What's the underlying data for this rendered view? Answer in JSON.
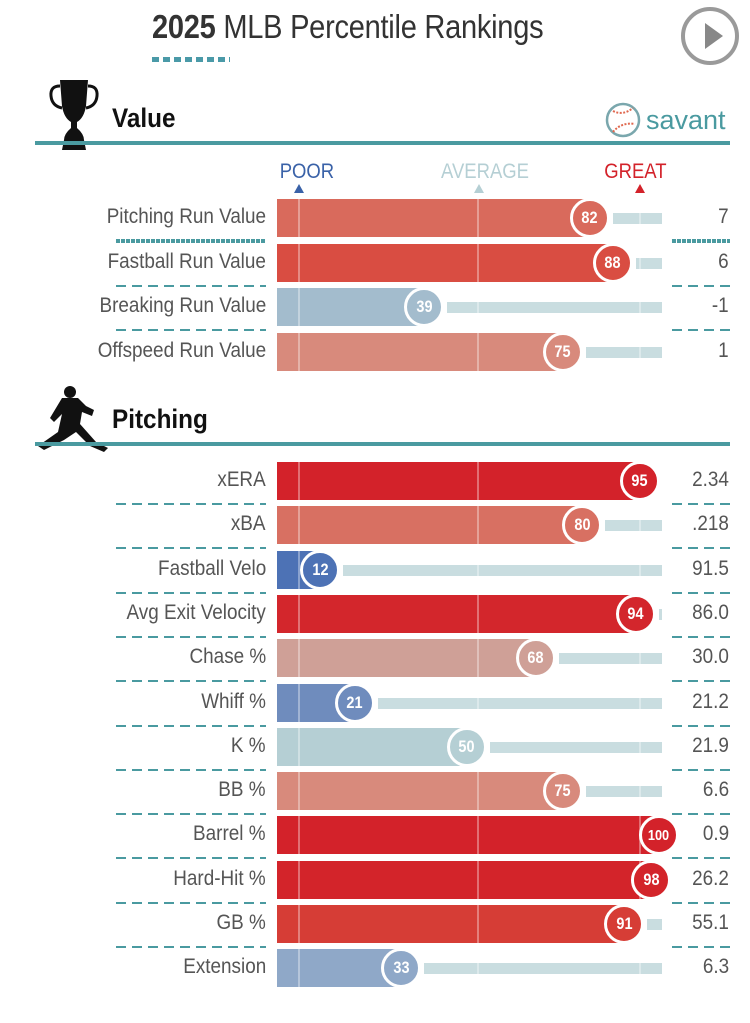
{
  "header": {
    "title_year": "2025",
    "title_rest": " MLB Percentile Rankings",
    "play_button": "play-icon"
  },
  "brand": {
    "label": "savant",
    "icon": "baseball-icon"
  },
  "legend": {
    "poor": "POOR",
    "average": "AVERAGE",
    "great": "GREAT"
  },
  "colors": {
    "accent": "#4a9aa0",
    "poor": "#3a62a8",
    "average": "#b5cfd4",
    "great": "#d3222a",
    "track": "#c9dde0"
  },
  "chart_data": [
    {
      "type": "bar",
      "title": "Value",
      "xlabel": "Percentile",
      "xlim": [
        0,
        100
      ],
      "categories": [
        "Pitching Run Value",
        "Fastball Run Value",
        "Breaking Run Value",
        "Offspeed Run Value"
      ],
      "percentiles": [
        82,
        88,
        39,
        75
      ],
      "stat_values": [
        "7",
        "6",
        "-1",
        "1"
      ],
      "bar_colors": [
        "#d96a5c",
        "#d94d42",
        "#a3bccd",
        "#d88a7c"
      ]
    },
    {
      "type": "bar",
      "title": "Pitching",
      "xlabel": "Percentile",
      "xlim": [
        0,
        100
      ],
      "categories": [
        "xERA",
        "xBA",
        "Fastball Velo",
        "Avg Exit Velocity",
        "Chase %",
        "Whiff %",
        "K %",
        "BB %",
        "Barrel %",
        "Hard-Hit %",
        "GB %",
        "Extension"
      ],
      "percentiles": [
        95,
        80,
        12,
        94,
        68,
        21,
        50,
        75,
        100,
        98,
        91,
        33
      ],
      "stat_values": [
        "2.34",
        ".218",
        "91.5",
        "86.0",
        "30.0",
        "21.2",
        "21.9",
        "6.6",
        "0.9",
        "26.2",
        "55.1",
        "6.3"
      ],
      "bar_colors": [
        "#d3222a",
        "#d87062",
        "#4d72b5",
        "#d3262c",
        "#cfa097",
        "#6f8cbd",
        "#b5cfd4",
        "#d88a7c",
        "#d3222a",
        "#d3242a",
        "#d63d36",
        "#8fa8c8"
      ]
    }
  ]
}
